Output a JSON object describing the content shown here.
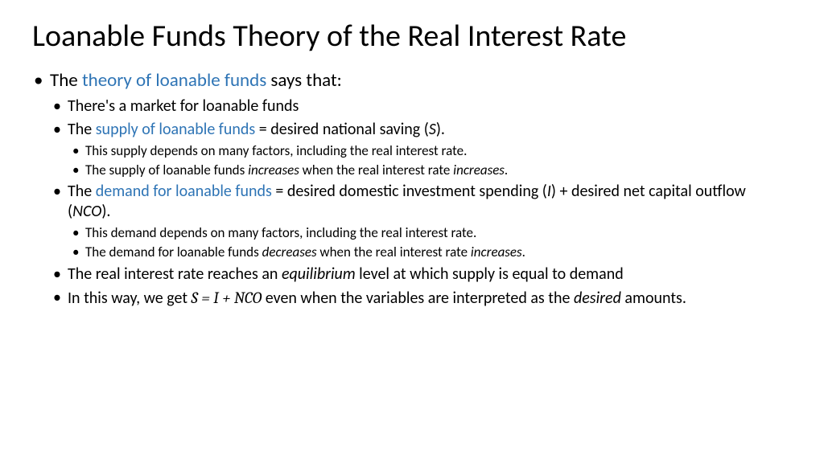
{
  "colors": {
    "text": "#000000",
    "accent": "#2e74b5",
    "background": "#ffffff"
  },
  "title": "Loanable Funds Theory of the Real Interest Rate",
  "intro": {
    "pre": "The ",
    "term": "theory of loanable funds",
    "post": " says that:"
  },
  "sub1": "There's a market for loanable funds",
  "supply": {
    "pre": "The ",
    "term": "supply of loanable funds",
    "post1": " = desired national saving (",
    "var": "S",
    "post2": ")."
  },
  "supply_d1": "This supply depends on many factors, including the real interest rate.",
  "supply_d2": {
    "a": "The supply of loanable funds ",
    "b": "increases",
    "c": " when the real interest rate ",
    "d": "increases",
    "e": "."
  },
  "demand": {
    "pre": "The ",
    "term": "demand for loanable funds",
    "post1": " = desired domestic investment spending (",
    "var1": "I",
    "post2": ") + desired net capital outflow (",
    "var2": "NCO",
    "post3": ")."
  },
  "demand_d1": "This demand depends on many factors, including the real interest rate.",
  "demand_d2": {
    "a": "The demand for loanable funds ",
    "b": "decreases",
    "c": " when the real interest rate ",
    "d": "increases",
    "e": "."
  },
  "equil": {
    "a": "The real interest rate reaches an ",
    "b": "equilibrium",
    "c": " level at which supply is equal to demand"
  },
  "final": {
    "a": "In this way, we get ",
    "eq": "S = I + NCO",
    "b": " even when the variables are interpreted as the ",
    "c": "desired",
    "d": " amounts."
  }
}
